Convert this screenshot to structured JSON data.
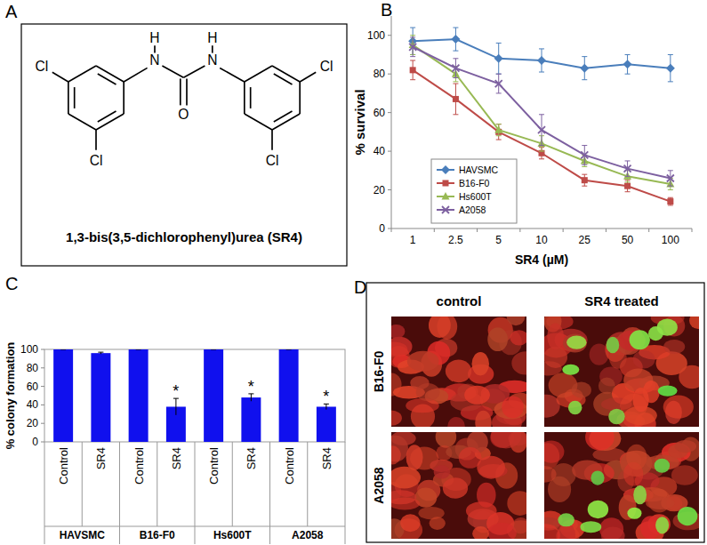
{
  "panels": [
    "A",
    "B",
    "C",
    "D"
  ],
  "structure": {
    "name": "1,3-bis(3,5-dichlorophenyl)urea (SR4)",
    "atoms": [
      "Cl",
      "Cl",
      "H",
      "N",
      "O",
      "H",
      "N",
      "Cl",
      "Cl"
    ]
  },
  "micrographs": {
    "columns": [
      "control",
      "SR4 treated"
    ],
    "rows": [
      "B16-F0",
      "A2058"
    ]
  },
  "chart_data": [
    {
      "type": "line",
      "x_label": "SR4 (µM)",
      "y_label": "% survival",
      "categories": [
        1,
        2.5,
        5,
        10,
        25,
        50,
        100
      ],
      "ylim": [
        0,
        110
      ],
      "yticks": [
        0,
        20,
        40,
        60,
        80,
        100
      ],
      "grid": false,
      "legend": "bottom-left",
      "series": [
        {
          "name": "HAVSMC",
          "color": "#4a7ebb",
          "marker": "diamond",
          "line_style": "solid",
          "values": [
            97,
            98,
            88,
            87,
            83,
            85,
            83
          ],
          "errors": [
            7,
            6,
            8,
            6,
            6,
            5,
            7
          ]
        },
        {
          "name": "B16-F0",
          "color": "#be4b48",
          "marker": "square",
          "line_style": "solid",
          "values": [
            82,
            67,
            50,
            39,
            25,
            22,
            14
          ],
          "errors": [
            5,
            8,
            4,
            3,
            3,
            3,
            2
          ]
        },
        {
          "name": "Hs600T",
          "color": "#98b954",
          "marker": "triangle",
          "line_style": "solid",
          "values": [
            95,
            80,
            51,
            44,
            35,
            27,
            23
          ],
          "errors": [
            5,
            4,
            3,
            4,
            3,
            3,
            3
          ]
        },
        {
          "name": "A2058",
          "color": "#7d60a0",
          "marker": "x",
          "line_style": "solid",
          "values": [
            94,
            83,
            75,
            51,
            38,
            31,
            26
          ],
          "errors": [
            5,
            5,
            5,
            8,
            5,
            4,
            4
          ]
        }
      ]
    },
    {
      "type": "bar",
      "y_label": "% colony formation",
      "categories": [
        "Control",
        "SR4",
        "Control",
        "SR4",
        "Control",
        "SR4",
        "Control",
        "SR4"
      ],
      "groups": [
        "HAVSMC",
        "B16-F0",
        "Hs600T",
        "A2058"
      ],
      "values": [
        100,
        96,
        100,
        38,
        100,
        48,
        100,
        38
      ],
      "errors": [
        0,
        1,
        0,
        9,
        0,
        4,
        0,
        3
      ],
      "significance": [
        null,
        null,
        null,
        "*",
        null,
        "*",
        null,
        "*"
      ],
      "color": "#1010ee",
      "ylim": [
        0,
        100
      ],
      "yticks": [
        0,
        20,
        40,
        60,
        80,
        100
      ],
      "grid": false
    }
  ]
}
